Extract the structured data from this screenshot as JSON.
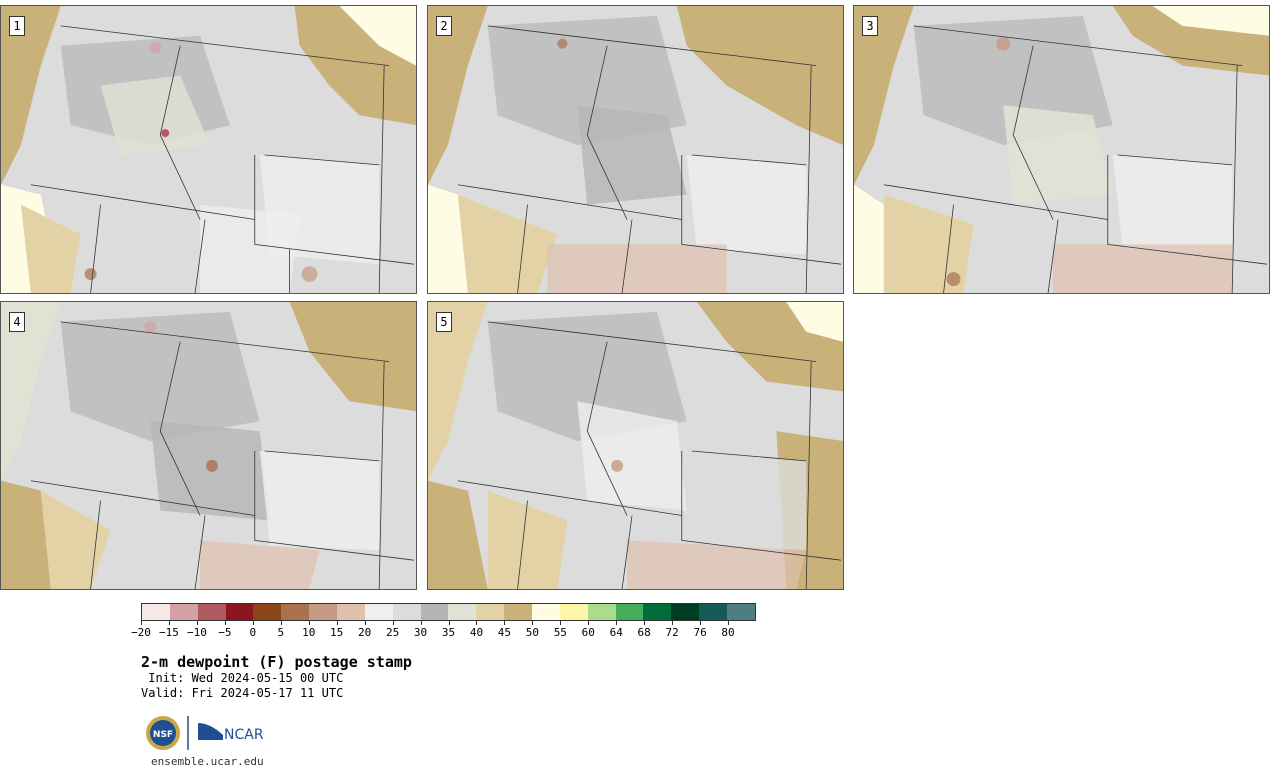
{
  "panels": [
    {
      "label": "1"
    },
    {
      "label": "2"
    },
    {
      "label": "3"
    },
    {
      "label": "4"
    },
    {
      "label": "5"
    }
  ],
  "colorbar": {
    "colors": [
      "#f5e9e6",
      "#d4a0a4",
      "#b05a5f",
      "#8b1521",
      "#8c4517",
      "#a9714e",
      "#c49a82",
      "#dfc1ae",
      "#efefef",
      "#dcdcdc",
      "#b5b5b5",
      "#e1e1d4",
      "#e2d2a5",
      "#c9b27a",
      "#fefde4",
      "#fbf6a8",
      "#a9dc8d",
      "#45ac5c",
      "#036c3c",
      "#003d25",
      "#145a55",
      "#4e7e7f"
    ],
    "tick_labels": [
      "−20",
      "−15",
      "−10",
      "−5",
      "0",
      "5",
      "10",
      "15",
      "20",
      "25",
      "30",
      "35",
      "40",
      "45",
      "50",
      "55",
      "60",
      "64",
      "68",
      "72",
      "76",
      "80"
    ]
  },
  "title": "2-m dewpoint (F) postage stamp",
  "init_text": " Init: Wed 2024-05-15 00 UTC",
  "valid_text": "Valid: Fri 2024-05-17 11 UTC",
  "logos": {
    "nsf": "NSF",
    "ncar": "NCAR"
  },
  "footer_url": "ensemble.ucar.edu"
}
